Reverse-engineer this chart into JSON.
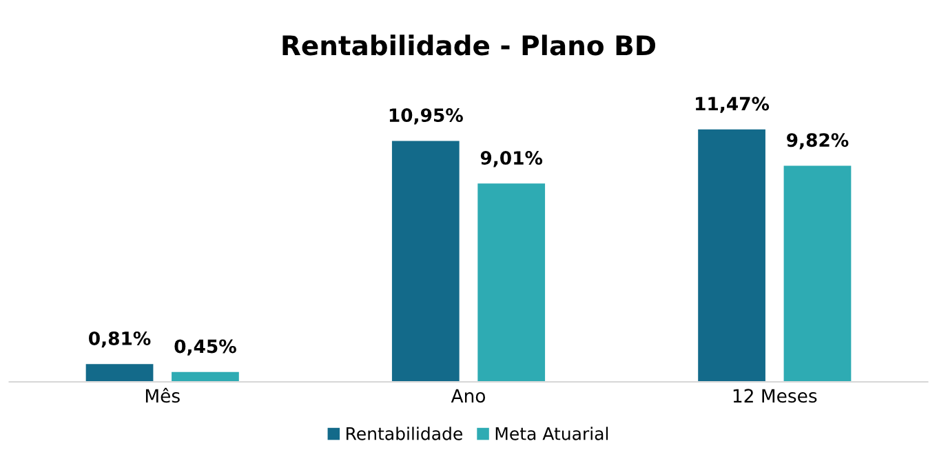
{
  "chart_data": {
    "type": "bar",
    "title": "Rentabilidade - Plano BD",
    "categories": [
      "Mês",
      "Ano",
      "12 Meses"
    ],
    "series": [
      {
        "name": "Rentabilidade",
        "color": "#136a8a",
        "values": [
          0.81,
          10.95,
          11.47
        ],
        "value_labels": [
          "0,81%",
          "10,95%",
          "11,47%"
        ]
      },
      {
        "name": "Meta Atuarial",
        "color": "#2eabb3",
        "values": [
          0.45,
          9.01,
          9.82
        ],
        "value_labels": [
          "0,45%",
          "9,01%",
          "9,82%"
        ]
      }
    ],
    "legend": "bottom",
    "grid": false,
    "tick_labels": "x"
  }
}
